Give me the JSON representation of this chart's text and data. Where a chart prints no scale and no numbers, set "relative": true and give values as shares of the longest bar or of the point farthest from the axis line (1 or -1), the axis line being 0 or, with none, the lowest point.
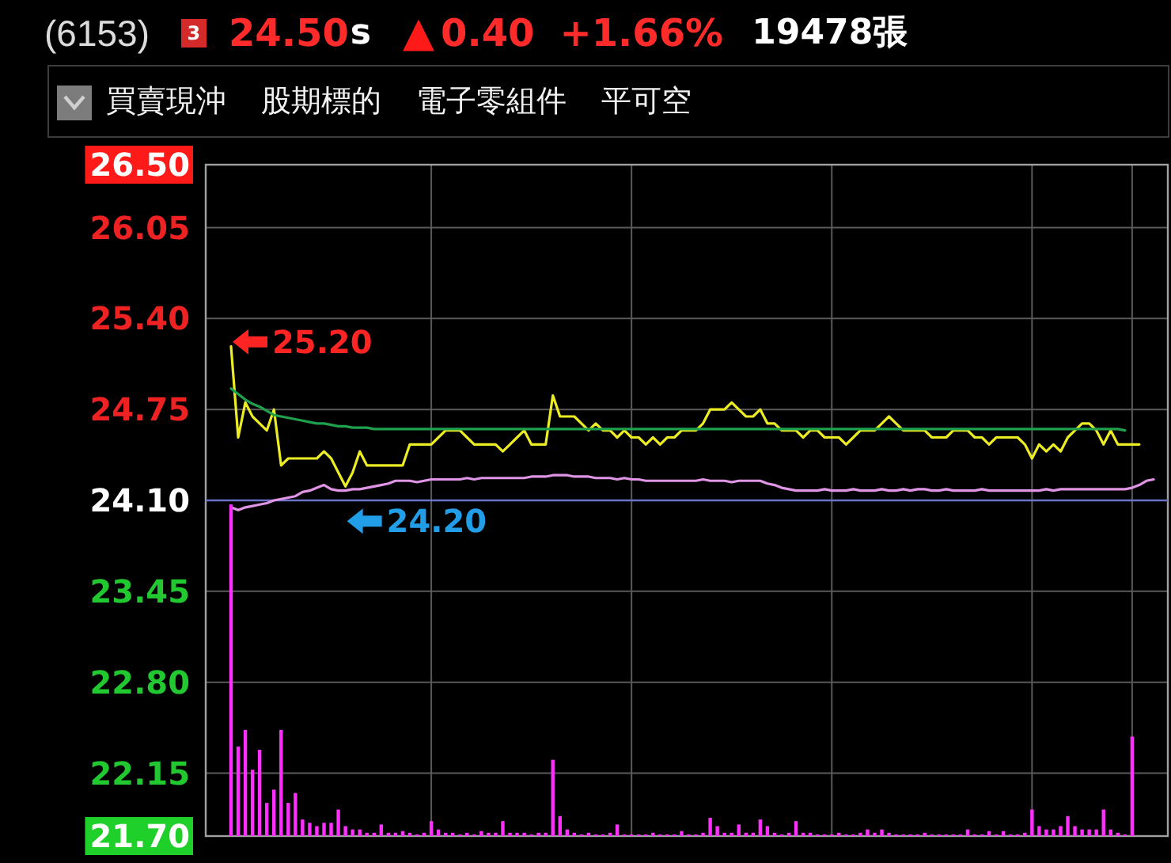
{
  "chart_data": [
    {
      "type": "line",
      "title": "(6153)",
      "annotations": [
        "3",
        "24.50",
        "s",
        "▲",
        "0.40",
        "+1.66%",
        "19478張",
        "買賣現沖",
        "股期標的",
        "電子零組件",
        "平可空",
        "25.20",
        {
          "text": "24.20",
          "y": 24.2
        }
      ],
      "categories": [
        null,
        null,
        null,
        null,
        null,
        null,
        null,
        null,
        null,
        null,
        null,
        null,
        null,
        null,
        null,
        null,
        null,
        null,
        null,
        null,
        null,
        null,
        null,
        null,
        null,
        null,
        null,
        null,
        null,
        null,
        null,
        null,
        null,
        null,
        null,
        null,
        null,
        null,
        null,
        null,
        null,
        null,
        null,
        null,
        null,
        null,
        null,
        null,
        null,
        null,
        null,
        null,
        null,
        null,
        null,
        null,
        null,
        null,
        null,
        null,
        null,
        null,
        null,
        null,
        null,
        null,
        null,
        null,
        null,
        null,
        null,
        null,
        null,
        null,
        null,
        null,
        null,
        null,
        null,
        null,
        null,
        null,
        null,
        null,
        null,
        null,
        null,
        null,
        null,
        null,
        null,
        null,
        null,
        null,
        null,
        null,
        null,
        null,
        null,
        null,
        null,
        null,
        null,
        null,
        null,
        null,
        null,
        null,
        null,
        null,
        null,
        null,
        null,
        null,
        null,
        null,
        null,
        null,
        null,
        null,
        null,
        null,
        null,
        null,
        null,
        null,
        null,
        null,
        null,
        null
      ],
      "series": [
        {
          "color": "#ecec24",
          "values": [
            25.2,
            24.55,
            24.8,
            24.7,
            24.65,
            24.6,
            24.75,
            24.35,
            24.4,
            24.4,
            24.4,
            24.4,
            24.4,
            24.45,
            24.4,
            24.3,
            24.2,
            24.3,
            24.45,
            24.35,
            24.35,
            24.35,
            24.35,
            24.35,
            24.35,
            24.5,
            24.5,
            24.5,
            24.5,
            24.55,
            24.6,
            24.6,
            24.6,
            24.55,
            24.5,
            24.5,
            24.5,
            24.5,
            24.45,
            24.5,
            24.55,
            24.6,
            24.5,
            24.5,
            24.5,
            24.85,
            24.7,
            24.7,
            24.7,
            24.65,
            24.6,
            24.65,
            24.6,
            24.6,
            24.55,
            24.6,
            24.55,
            24.55,
            24.5,
            24.55,
            24.5,
            24.55,
            24.55,
            24.6,
            24.6,
            24.6,
            24.65,
            24.75,
            24.75,
            24.75,
            24.8,
            24.75,
            24.7,
            24.7,
            24.75,
            24.65,
            24.65,
            24.6,
            24.6,
            24.6,
            24.55,
            24.6,
            24.6,
            24.55,
            24.55,
            24.55,
            24.5,
            24.55,
            24.6,
            24.6,
            24.6,
            24.65,
            24.7,
            24.65,
            24.6,
            24.6,
            24.6,
            24.6,
            24.55,
            24.55,
            24.55,
            24.6,
            24.6,
            24.6,
            24.55,
            24.55,
            24.5,
            24.55,
            24.55,
            24.55,
            24.55,
            24.5,
            24.4,
            24.5,
            24.45,
            24.5,
            24.45,
            24.55,
            24.6,
            24.65,
            24.65,
            24.6,
            24.5,
            24.6,
            24.5,
            24.5,
            24.5,
            24.5,
            null,
            null
          ]
        },
        {
          "color": "#1fa04c",
          "values": [
            24.9,
            24.86,
            24.82,
            24.79,
            24.77,
            24.74,
            24.71,
            24.7,
            24.69,
            24.68,
            24.67,
            24.66,
            24.65,
            24.65,
            24.64,
            24.63,
            24.63,
            24.62,
            24.62,
            24.62,
            24.61,
            24.61,
            24.61,
            24.61,
            24.61,
            24.61,
            24.61,
            24.61,
            24.61,
            24.61,
            24.61,
            24.61,
            24.61,
            24.61,
            24.61,
            24.61,
            24.61,
            24.61,
            24.61,
            24.61,
            24.61,
            24.61,
            24.61,
            24.61,
            24.61,
            24.61,
            24.61,
            24.61,
            24.61,
            24.61,
            24.61,
            24.61,
            24.61,
            24.61,
            24.61,
            24.61,
            24.61,
            24.61,
            24.61,
            24.61,
            24.61,
            24.61,
            24.61,
            24.61,
            24.61,
            24.61,
            24.61,
            24.61,
            24.61,
            24.61,
            24.61,
            24.61,
            24.61,
            24.61,
            24.61,
            24.61,
            24.61,
            24.61,
            24.61,
            24.61,
            24.61,
            24.61,
            24.61,
            24.61,
            24.61,
            24.61,
            24.61,
            24.61,
            24.61,
            24.61,
            24.61,
            24.61,
            24.61,
            24.61,
            24.61,
            24.61,
            24.61,
            24.61,
            24.61,
            24.61,
            24.61,
            24.61,
            24.61,
            24.61,
            24.61,
            24.61,
            24.61,
            24.61,
            24.61,
            24.61,
            24.61,
            24.61,
            24.61,
            24.61,
            24.61,
            24.61,
            24.61,
            24.61,
            24.61,
            24.61,
            24.61,
            24.61,
            24.61,
            24.61,
            24.61,
            24.6,
            null,
            null,
            null,
            null
          ]
        },
        {
          "color": "#e094e6",
          "values": [
            24.05,
            24.03,
            24.05,
            24.06,
            24.07,
            24.08,
            24.1,
            24.11,
            24.12,
            24.13,
            24.16,
            24.17,
            24.19,
            24.21,
            24.18,
            24.17,
            24.17,
            24.18,
            24.18,
            24.19,
            24.2,
            24.21,
            24.22,
            24.24,
            24.24,
            24.24,
            24.23,
            24.24,
            24.25,
            24.25,
            24.25,
            24.25,
            24.25,
            24.26,
            24.25,
            24.26,
            24.26,
            24.26,
            24.26,
            24.26,
            24.26,
            24.26,
            24.27,
            24.27,
            24.27,
            24.28,
            24.28,
            24.28,
            24.27,
            24.27,
            24.27,
            24.26,
            24.26,
            24.26,
            24.25,
            24.26,
            24.25,
            24.25,
            24.24,
            24.24,
            24.24,
            24.24,
            24.24,
            24.24,
            24.24,
            24.24,
            24.25,
            24.24,
            24.24,
            24.24,
            24.23,
            24.24,
            24.24,
            24.24,
            24.24,
            24.22,
            24.21,
            24.19,
            24.18,
            24.17,
            24.17,
            24.17,
            24.17,
            24.18,
            24.17,
            24.17,
            24.17,
            24.18,
            24.17,
            24.17,
            24.17,
            24.18,
            24.17,
            24.17,
            24.18,
            24.17,
            24.18,
            24.18,
            24.17,
            24.17,
            24.18,
            24.17,
            24.17,
            24.17,
            24.17,
            24.18,
            24.17,
            24.17,
            24.17,
            24.17,
            24.17,
            24.17,
            24.17,
            24.17,
            24.18,
            24.17,
            24.18,
            24.18,
            24.18,
            24.18,
            24.18,
            24.18,
            24.18,
            24.18,
            24.18,
            24.18,
            24.19,
            24.21,
            24.24,
            24.25
          ]
        }
      ],
      "ylim": [
        21.7,
        26.5
      ],
      "yticks": [
        {
          "value": 21.7,
          "label": "21.70"
        },
        22.15,
        {
          "value": 22.8,
          "label": "22.80"
        },
        23.45,
        {
          "value": 24.1,
          "label": "24.10"
        },
        24.75,
        {
          "value": 25.4,
          "label": "25.40"
        },
        26.05,
        {
          "value": 26.5,
          "label": "26.50"
        }
      ],
      "grid": true,
      "ref_lines": [
        {
          "axis": "y",
          "value": 24.1,
          "color": "#6b72c8"
        }
      ],
      "tick_labels": "y"
    },
    {
      "type": "bar",
      "relative": true,
      "color": "#ff30ff",
      "categories": [
        null,
        null,
        null,
        null,
        null,
        null,
        null,
        null,
        null,
        null,
        null,
        null,
        null,
        null,
        null,
        null,
        null,
        null,
        null,
        null,
        null,
        null,
        null,
        null,
        null,
        null,
        null,
        null,
        null,
        null,
        null,
        null,
        null,
        null,
        null,
        null,
        null,
        null,
        null,
        null,
        null,
        null,
        null,
        null,
        null,
        null,
        null,
        null,
        null,
        null,
        null,
        null,
        null,
        null,
        null,
        null,
        null,
        null,
        null,
        null,
        null,
        null,
        null,
        null,
        null,
        null,
        null,
        null,
        null,
        null,
        null,
        null,
        null,
        null,
        null,
        null,
        null,
        null,
        null,
        null,
        null,
        null,
        null,
        null,
        null,
        null,
        null,
        null,
        null,
        null,
        null,
        null,
        null,
        null,
        null,
        null,
        null,
        null,
        null,
        null,
        null,
        null,
        null,
        null,
        null,
        null,
        null,
        null,
        null,
        null,
        null,
        null,
        null,
        null,
        null,
        null,
        null,
        null,
        null,
        null,
        null,
        null,
        null,
        null,
        null,
        null,
        null,
        null,
        null,
        null
      ],
      "values": [
        1,
        0.27,
        0.32,
        0.2,
        0.26,
        0.1,
        0.14,
        0.32,
        0.1,
        0.13,
        0.05,
        0.04,
        0.03,
        0.04,
        0.04,
        0.08,
        0.03,
        0.02,
        0.02,
        0.01,
        0.01,
        0.035,
        0.01,
        0.01,
        0.015,
        0.01,
        0.005,
        0.01,
        0.045,
        0.02,
        0.01,
        0.01,
        0.005,
        0.01,
        0.005,
        0.015,
        0.01,
        0.01,
        0.045,
        0.01,
        0.01,
        0.01,
        0.005,
        0.01,
        0.01,
        0.23,
        0.06,
        0.02,
        0.01,
        0.005,
        0.01,
        0.005,
        0.005,
        0.01,
        0.035,
        0.005,
        0.005,
        0.005,
        0.005,
        0.01,
        0.005,
        0.005,
        0.005,
        0.015,
        0.005,
        0.005,
        0.01,
        0.055,
        0.03,
        0.01,
        0.01,
        0.035,
        0.01,
        0.01,
        0.05,
        0.03,
        0.01,
        0.005,
        0.01,
        0.045,
        0.01,
        0.01,
        0.005,
        0.005,
        0.005,
        0.01,
        0.005,
        0.005,
        0.01,
        0.02,
        0.01,
        0.02,
        0.01,
        0.005,
        0.005,
        0.005,
        0.005,
        0.01,
        0.005,
        0.005,
        0.005,
        0.005,
        0.005,
        0.02,
        0.005,
        0.005,
        0.015,
        0.005,
        0.015,
        0.005,
        0.005,
        0.01,
        0.08,
        0.03,
        0.02,
        0.02,
        0.03,
        0.06,
        0.03,
        0.02,
        0.02,
        0.02,
        0.08,
        0.02,
        0.01,
        0.005,
        0.3,
        null,
        null,
        null
      ]
    }
  ]
}
